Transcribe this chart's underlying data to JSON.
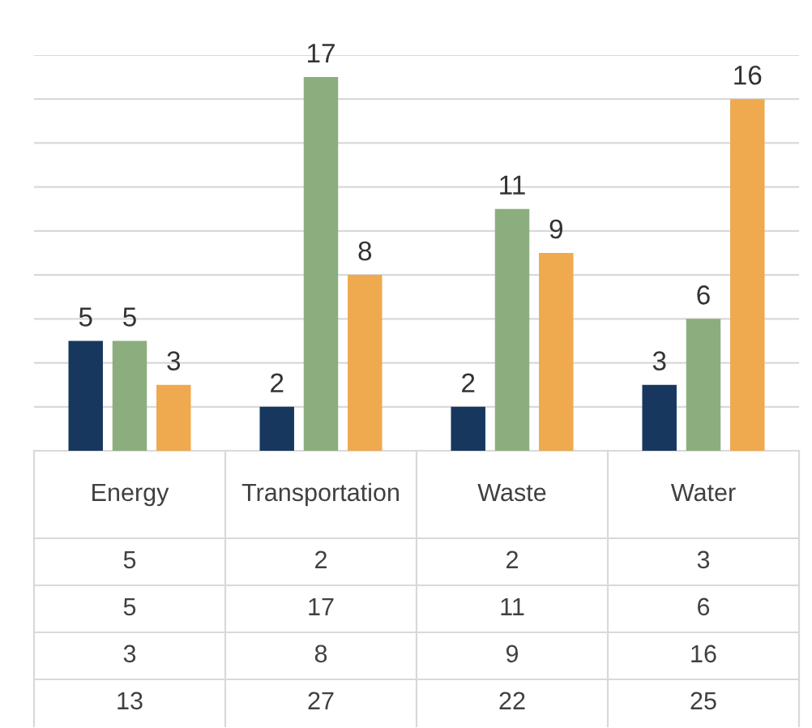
{
  "chart_data": {
    "type": "bar",
    "categories": [
      "Energy",
      "Transportation",
      "Waste",
      "Water"
    ],
    "series": [
      {
        "color": "#17375e",
        "values": [
          5,
          2,
          2,
          3
        ],
        "value_labels": [
          "5",
          "2",
          "2",
          "3"
        ]
      },
      {
        "color": "#8cae7f",
        "values": [
          5,
          17,
          11,
          6
        ],
        "value_labels": [
          "5",
          "17",
          "11",
          "6"
        ]
      },
      {
        "color": "#efa94f",
        "values": [
          3,
          8,
          9,
          16
        ],
        "value_labels": [
          "3",
          "8",
          "9",
          "16"
        ]
      }
    ],
    "ylim": [
      0,
      18
    ],
    "yticks": [
      {
        "value": 0,
        "label": null
      },
      {
        "value": 2,
        "label": null
      },
      {
        "value": 4,
        "label": null
      },
      {
        "value": 6,
        "label": null
      },
      {
        "value": 8,
        "label": null
      },
      {
        "value": 10,
        "label": null
      },
      {
        "value": 12,
        "label": null
      },
      {
        "value": 14,
        "label": null
      },
      {
        "value": 16,
        "label": null
      },
      {
        "value": 18,
        "label": null
      }
    ],
    "grid": "y",
    "annotations": [
      "5",
      "2",
      "2",
      "3",
      "5",
      "17",
      "11",
      "6",
      "3",
      "8",
      "9",
      "16",
      "13",
      "27",
      "22",
      "25"
    ]
  }
}
